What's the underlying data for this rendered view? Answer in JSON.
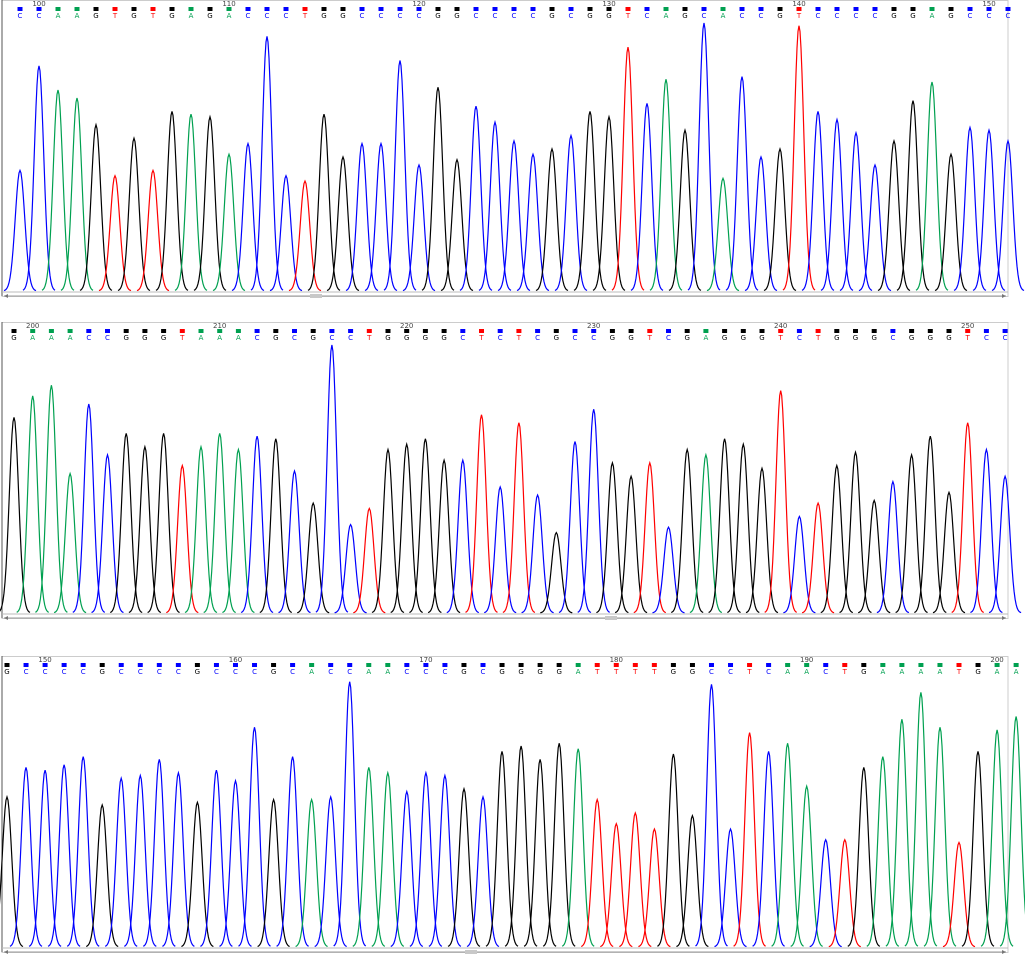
{
  "panels": [
    {
      "ticks": [
        100,
        110,
        120,
        130,
        140,
        150
      ],
      "bases": [
        "C",
        "C",
        "A",
        "A",
        "G",
        "T",
        "G",
        "T",
        "G",
        "A",
        "G",
        "A",
        "C",
        "C",
        "C",
        "T",
        "G",
        "G",
        "C",
        "C",
        "C",
        "C",
        "G",
        "G",
        "C",
        "C",
        "C",
        "C",
        "G",
        "C",
        "G",
        "G",
        "T",
        "C",
        "A",
        "G",
        "C",
        "A",
        "C",
        "C",
        "G",
        "T",
        "C",
        "C",
        "C",
        "C",
        "G",
        "G",
        "A",
        "G",
        "C",
        "C",
        "C"
      ],
      "heights": [
        45,
        84,
        75,
        72,
        62,
        43,
        57,
        45,
        67,
        66,
        65,
        51,
        55,
        95,
        43,
        41,
        66,
        50,
        55,
        55,
        86,
        47,
        76,
        49,
        69,
        63,
        56,
        51,
        53,
        58,
        67,
        65,
        91,
        70,
        79,
        60,
        100,
        42,
        80,
        50,
        53,
        99,
        67,
        64,
        59,
        47,
        56,
        71,
        78,
        51,
        61,
        60,
        56
      ]
    },
    {
      "ticks": [
        200,
        210,
        220,
        230,
        240,
        250
      ],
      "bases": [
        "G",
        "A",
        "A",
        "A",
        "C",
        "C",
        "G",
        "G",
        "G",
        "T",
        "A",
        "A",
        "A",
        "C",
        "G",
        "C",
        "G",
        "C",
        "C",
        "T",
        "G",
        "G",
        "G",
        "G",
        "C",
        "T",
        "C",
        "T",
        "C",
        "G",
        "C",
        "C",
        "G",
        "G",
        "T",
        "C",
        "G",
        "A",
        "G",
        "G",
        "G",
        "T",
        "C",
        "T",
        "G",
        "G",
        "G",
        "C",
        "G",
        "G",
        "G",
        "T",
        "C",
        "C"
      ],
      "heights": [
        73,
        81,
        85,
        52,
        78,
        59,
        67,
        62,
        67,
        55,
        62,
        67,
        61,
        66,
        65,
        53,
        41,
        100,
        33,
        39,
        61,
        63,
        65,
        57,
        57,
        74,
        47,
        71,
        44,
        30,
        64,
        76,
        56,
        51,
        56,
        32,
        61,
        59,
        65,
        63,
        54,
        83,
        36,
        41,
        55,
        60,
        42,
        49,
        59,
        66,
        45,
        71,
        61,
        51
      ]
    },
    {
      "ticks": [
        150,
        160,
        170,
        180,
        190,
        200
      ],
      "bases": [
        "G",
        "C",
        "C",
        "C",
        "C",
        "G",
        "C",
        "C",
        "C",
        "C",
        "G",
        "C",
        "C",
        "C",
        "G",
        "C",
        "A",
        "C",
        "C",
        "A",
        "A",
        "C",
        "C",
        "C",
        "G",
        "C",
        "G",
        "G",
        "G",
        "G",
        "A",
        "T",
        "T",
        "T",
        "T",
        "G",
        "G",
        "C",
        "C",
        "T",
        "C",
        "A",
        "A",
        "C",
        "T",
        "G",
        "A",
        "A",
        "A",
        "A",
        "T",
        "G",
        "A",
        "A"
      ],
      "heights": [
        56,
        67,
        66,
        68,
        71,
        53,
        63,
        64,
        70,
        65,
        54,
        66,
        62,
        82,
        55,
        71,
        55,
        56,
        99,
        67,
        65,
        58,
        65,
        64,
        59,
        56,
        73,
        75,
        70,
        76,
        74,
        55,
        46,
        50,
        44,
        72,
        49,
        98,
        44,
        80,
        73,
        76,
        60,
        40,
        40,
        67,
        71,
        85,
        95,
        82,
        39,
        73,
        81,
        86
      ]
    }
  ],
  "colors": {
    "A": "#00a050",
    "C": "#0000ff",
    "G": "#000000",
    "T": "#ff0000"
  }
}
